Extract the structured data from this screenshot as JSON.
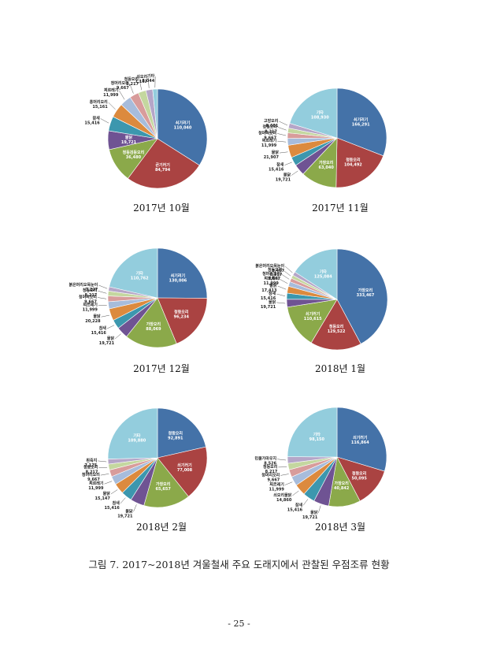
{
  "caption": "그림 7. 2017~2018년 겨울철새 주요 도래지에서 관찰된 우점조류 현황",
  "page_number": "- 25 -",
  "palette": [
    "#4472A8",
    "#AA4342",
    "#8BA94A",
    "#6F5393",
    "#3C97AE",
    "#DC8A3E",
    "#A7BCDB",
    "#D89C9B",
    "#C4D79F",
    "#B5A6C8",
    "#93CDDD"
  ],
  "chart_data": [
    {
      "type": "pie",
      "title": "2017년 10월",
      "slices": [
        {
          "label": "쇠기러기",
          "value": 110040,
          "value_label": "110,040",
          "color": "#4472A8"
        },
        {
          "label": "큰기러기",
          "value": 84794,
          "value_label": "84,794",
          "color": "#AA4342"
        },
        {
          "label": "청둥검둥오리",
          "value": 36480,
          "value_label": "36,480",
          "color": "#8BA94A"
        },
        {
          "label": "물닭",
          "value": 19721,
          "value_label": "19,721",
          "color": "#6F5393"
        },
        {
          "label": "참새",
          "value": 15416,
          "value_label": "15,416",
          "color": "#3C97AE"
        },
        {
          "label": "홍머리오리",
          "value": 15161,
          "value_label": "15,161",
          "color": "#DC8A3E"
        },
        {
          "label": "찌르레기",
          "value": 11999,
          "value_label": "11,999",
          "color": "#A7BCDB"
        },
        {
          "label": "청머리오리",
          "value": 9667,
          "value_label": "9,667",
          "color": "#D89C9B"
        },
        {
          "label": "청둥오리",
          "value": 8217,
          "value_label": "8,217",
          "color": "#C4D79F"
        },
        {
          "label": "쇠오리",
          "value": 7167,
          "value_label": "7,167",
          "color": "#B5A6C8"
        },
        {
          "label": "기타",
          "value": 5044,
          "value_label": "5,044",
          "color": "#93CDDD"
        }
      ]
    },
    {
      "type": "pie",
      "title": "2017년 11월",
      "slices": [
        {
          "label": "쇠기러기",
          "value": 166291,
          "value_label": "166,291",
          "color": "#4472A8"
        },
        {
          "label": "청둥오리",
          "value": 104492,
          "value_label": "104,492",
          "color": "#AA4342"
        },
        {
          "label": "가창오리",
          "value": 63040,
          "value_label": "63,040",
          "color": "#8BA94A"
        },
        {
          "label": "물닭",
          "value": 19721,
          "value_label": "19,721",
          "color": "#6F5393"
        },
        {
          "label": "참새",
          "value": 15416,
          "value_label": "15,416",
          "color": "#3C97AE"
        },
        {
          "label": "물닭",
          "value": 21907,
          "value_label": "21,907",
          "color": "#DC8A3E"
        },
        {
          "label": "찌르레기",
          "value": 11999,
          "value_label": "11,999",
          "color": "#A7BCDB"
        },
        {
          "label": "청머리오리",
          "value": 9667,
          "value_label": "9,667",
          "color": "#D89C9B"
        },
        {
          "label": "청둥오리",
          "value": 8217,
          "value_label": "8,217",
          "color": "#C4D79F"
        },
        {
          "label": "고방오리",
          "value": 8601,
          "value_label": "8,601",
          "color": "#B5A6C8"
        },
        {
          "label": "기타",
          "value": 108930,
          "value_label": "108,930",
          "color": "#93CDDD"
        }
      ]
    },
    {
      "type": "pie",
      "title": "2017년 12월",
      "slices": [
        {
          "label": "쇠기러기",
          "value": 130006,
          "value_label": "130,006",
          "color": "#4472A8"
        },
        {
          "label": "청둥오리",
          "value": 96234,
          "value_label": "96,234",
          "color": "#AA4342"
        },
        {
          "label": "가창오리",
          "value": 88069,
          "value_label": "88,069",
          "color": "#8BA94A"
        },
        {
          "label": "물닭",
          "value": 19721,
          "value_label": "19,721",
          "color": "#6F5393"
        },
        {
          "label": "참새",
          "value": 15416,
          "value_label": "15,416",
          "color": "#3C97AE"
        },
        {
          "label": "물닭",
          "value": 20228,
          "value_label": "20,228",
          "color": "#DC8A3E"
        },
        {
          "label": "찌르레기",
          "value": 11999,
          "value_label": "11,999",
          "color": "#A7BCDB"
        },
        {
          "label": "청머리오리",
          "value": 9667,
          "value_label": "9,667",
          "color": "#D89C9B"
        },
        {
          "label": "청둥오리",
          "value": 8217,
          "value_label": "8,217",
          "color": "#C4D79F"
        },
        {
          "label": "붉은머리오목눈이",
          "value": 7227,
          "value_label": "7,227",
          "color": "#B5A6C8"
        },
        {
          "label": "기타",
          "value": 110762,
          "value_label": "110,762",
          "color": "#93CDDD"
        }
      ]
    },
    {
      "type": "pie",
      "title": "2018년 1월",
      "slices": [
        {
          "label": "가창오리",
          "value": 333467,
          "value_label": "333,467",
          "color": "#4472A8"
        },
        {
          "label": "청둥오리",
          "value": 129522,
          "value_label": "129,522",
          "color": "#AA4342"
        },
        {
          "label": "쇠기러기",
          "value": 110615,
          "value_label": "110,615",
          "color": "#8BA94A"
        },
        {
          "label": "물닭",
          "value": 19721,
          "value_label": "19,721",
          "color": "#6F5393"
        },
        {
          "label": "참새",
          "value": 15416,
          "value_label": "15,416",
          "color": "#3C97AE"
        },
        {
          "label": "물닭",
          "value": 17413,
          "value_label": "17,413",
          "color": "#DC8A3E"
        },
        {
          "label": "찌르레기",
          "value": 11999,
          "value_label": "11,999",
          "color": "#A7BCDB"
        },
        {
          "label": "청머리오리",
          "value": 9667,
          "value_label": "9,667",
          "color": "#D89C9B"
        },
        {
          "label": "청둥오리",
          "value": 8217,
          "value_label": "8,217",
          "color": "#C4D79F"
        },
        {
          "label": "붉은머리오목눈이",
          "value": 9467,
          "value_label": "9,467",
          "color": "#B5A6C8"
        },
        {
          "label": "기타",
          "value": 125084,
          "value_label": "125,084",
          "color": "#93CDDD"
        }
      ]
    },
    {
      "type": "pie",
      "title": "2018년 2월",
      "slices": [
        {
          "label": "청둥오리",
          "value": 92891,
          "value_label": "92,891",
          "color": "#4472A8"
        },
        {
          "label": "쇠기러기",
          "value": 77008,
          "value_label": "77,008",
          "color": "#AA4342"
        },
        {
          "label": "가창오리",
          "value": 65657,
          "value_label": "65,657",
          "color": "#8BA94A"
        },
        {
          "label": "물닭",
          "value": 19721,
          "value_label": "19,721",
          "color": "#6F5393"
        },
        {
          "label": "참새",
          "value": 15416,
          "value_label": "15,416",
          "color": "#3C97AE"
        },
        {
          "label": "물닭",
          "value": 15147,
          "value_label": "15,147",
          "color": "#DC8A3E"
        },
        {
          "label": "찌르레기",
          "value": 11999,
          "value_label": "11,999",
          "color": "#A7BCDB"
        },
        {
          "label": "청머리오리",
          "value": 9667,
          "value_label": "9,667",
          "color": "#D89C9B"
        },
        {
          "label": "청둥오리",
          "value": 8217,
          "value_label": "8,217",
          "color": "#C4D79F"
        },
        {
          "label": "흰죽지",
          "value": 7175,
          "value_label": "7,175",
          "color": "#B5A6C8"
        },
        {
          "label": "기타",
          "value": 109880,
          "value_label": "109,880",
          "color": "#93CDDD"
        }
      ]
    },
    {
      "type": "pie",
      "title": "2018년 3월",
      "slices": [
        {
          "label": "쇠기러기",
          "value": 116864,
          "value_label": "116,864",
          "color": "#4472A8"
        },
        {
          "label": "청둥오리",
          "value": 50095,
          "value_label": "50,095",
          "color": "#AA4342"
        },
        {
          "label": "가창오리",
          "value": 40842,
          "value_label": "40,842",
          "color": "#8BA94A"
        },
        {
          "label": "물닭",
          "value": 19721,
          "value_label": "19,721",
          "color": "#6F5393"
        },
        {
          "label": "참새",
          "value": 15416,
          "value_label": "15,416",
          "color": "#3C97AE"
        },
        {
          "label": "쇠오리물닭",
          "value": 14860,
          "value_label": "14,860",
          "color": "#DC8A3E"
        },
        {
          "label": "찌르레기",
          "value": 11999,
          "value_label": "11,999",
          "color": "#A7BCDB"
        },
        {
          "label": "청머리오리",
          "value": 9667,
          "value_label": "9,667",
          "color": "#D89C9B"
        },
        {
          "label": "청둥오리",
          "value": 8217,
          "value_label": "8,217",
          "color": "#C4D79F"
        },
        {
          "label": "민물가마우지",
          "value": 8526,
          "value_label": "8,526",
          "color": "#B5A6C8"
        },
        {
          "label": "기타",
          "value": 98150,
          "value_label": "98,150",
          "color": "#93CDDD"
        }
      ]
    }
  ]
}
